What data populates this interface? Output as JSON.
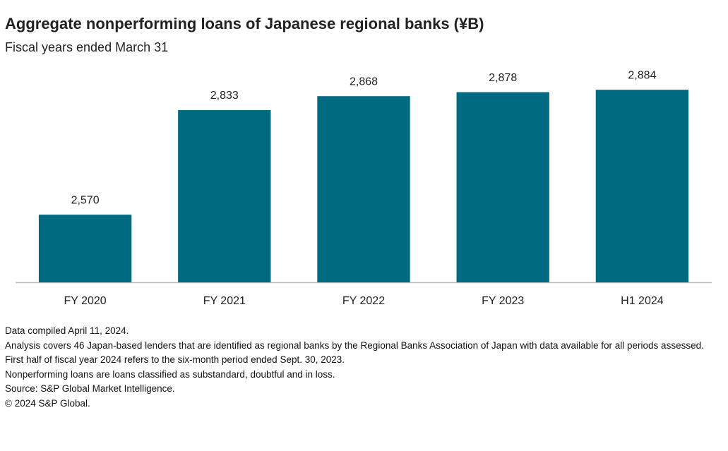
{
  "chart_data": {
    "type": "bar",
    "title": "Aggregate nonperforming loans of Japanese regional banks (¥B)",
    "subtitle": "Fiscal years ended March 31",
    "categories": [
      "FY 2020",
      "FY 2021",
      "FY 2022",
      "FY 2023",
      "H1 2024"
    ],
    "values": [
      2570,
      2833,
      2868,
      2878,
      2884
    ],
    "value_labels": [
      "2,570",
      "2,833",
      "2,868",
      "2,878",
      "2,884"
    ],
    "color": "#006a80",
    "ylim": [
      2400,
      2950
    ],
    "notes": [
      "Data compiled April 11, 2024.",
      "Analysis covers 46 Japan-based lenders that are identified as regional banks by the Regional Banks Association of Japan with data available for all periods assessed.",
      "First half of fiscal year 2024 refers to the six-month period ended Sept. 30, 2023.",
      "Nonperforming loans are loans classified as substandard, doubtful and in loss.",
      "Source: S&P Global Market Intelligence.",
      "© 2024 S&P Global."
    ]
  }
}
